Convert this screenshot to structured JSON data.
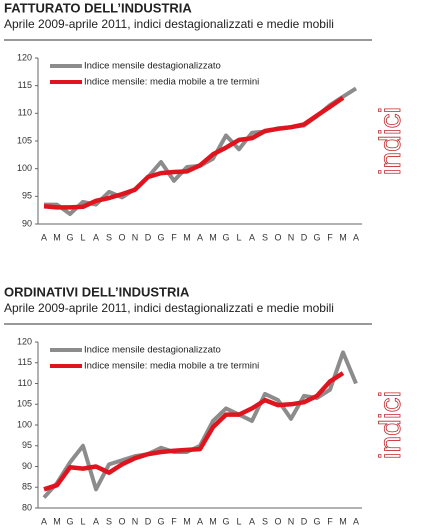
{
  "chart_data": [
    {
      "type": "line",
      "title": "FATTURATO DELL’INDUSTRIA",
      "subtitle": "Aprile 2009-aprile 2011, indici destagionalizzati e medie mobili",
      "y_label": "indici",
      "categories": [
        "A",
        "M",
        "G",
        "L",
        "A",
        "S",
        "O",
        "N",
        "D",
        "G",
        "F",
        "M",
        "A",
        "M",
        "G",
        "L",
        "A",
        "S",
        "O",
        "N",
        "D",
        "G",
        "F",
        "M",
        "A"
      ],
      "ylim": [
        90,
        120
      ],
      "yticks": [
        90,
        95,
        100,
        105,
        110,
        115,
        120
      ],
      "legend": "upper left",
      "series": [
        {
          "name": "Indice mensile destagionalizzato",
          "color": "#8c8c8c",
          "values": [
            93.5,
            93.5,
            91.8,
            94,
            93.5,
            95.8,
            94.8,
            96.3,
            98.5,
            101.2,
            97.8,
            100.3,
            100.5,
            101.8,
            106,
            103.5,
            106.5,
            106.7,
            107.3,
            107.5,
            107.8,
            109.5,
            111.5,
            113,
            114.5
          ]
        },
        {
          "name": "Indice mensile: media mobile a tre termini",
          "color": "#e0141e",
          "values": [
            93.2,
            93,
            93,
            93.1,
            94.2,
            94.7,
            95.4,
            96.2,
            98.5,
            99.2,
            99.4,
            99.5,
            100.6,
            102.6,
            103.8,
            105.2,
            105.5,
            106.8,
            107.2,
            107.5,
            108,
            109.6,
            111.2,
            112.8,
            null
          ]
        }
      ]
    },
    {
      "type": "line",
      "title": "ORDINATIVI DELL’INDUSTRIA",
      "subtitle": "Aprile 2009-aprile 2011, indici destagionalizzati e medie mobili",
      "y_label": "indici",
      "categories": [
        "A",
        "M",
        "G",
        "L",
        "A",
        "S",
        "O",
        "N",
        "D",
        "G",
        "F",
        "M",
        "A",
        "M",
        "G",
        "L",
        "A",
        "S",
        "O",
        "N",
        "D",
        "G",
        "F",
        "M",
        "A"
      ],
      "ylim": [
        80,
        120
      ],
      "yticks": [
        80,
        85,
        90,
        95,
        100,
        105,
        110,
        115,
        120
      ],
      "legend": "upper left",
      "series": [
        {
          "name": "Indice mensile destagionalizzato",
          "color": "#8c8c8c",
          "values": [
            82.5,
            86,
            91,
            95,
            84.5,
            90.5,
            91.5,
            92.5,
            93,
            94.5,
            93.5,
            93.5,
            95,
            101,
            104,
            102.5,
            101,
            107.5,
            106,
            101.5,
            107,
            106.5,
            108.5,
            117.5,
            110
          ]
        },
        {
          "name": "Indice mensile: media mobile a tre termini",
          "color": "#e0141e",
          "values": [
            84.5,
            85.5,
            89.8,
            89.5,
            90,
            88.5,
            90.5,
            92,
            93,
            93.5,
            93.8,
            94,
            94.2,
            99.5,
            102.5,
            102.5,
            104,
            106,
            104.8,
            105,
            105.5,
            107,
            110.5,
            112.5,
            null
          ]
        }
      ]
    }
  ]
}
